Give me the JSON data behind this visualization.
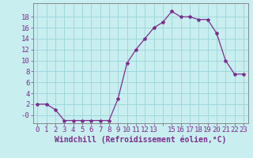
{
  "x": [
    0,
    1,
    2,
    3,
    4,
    5,
    6,
    7,
    8,
    9,
    10,
    11,
    12,
    13,
    14,
    15,
    16,
    17,
    18,
    19,
    20,
    21,
    22,
    23
  ],
  "y": [
    2,
    2,
    1,
    -1,
    -1,
    -1,
    -1,
    -1,
    -1,
    3,
    9.5,
    12,
    14,
    16,
    17,
    19,
    18,
    18,
    17.5,
    17.5,
    15,
    10,
    7.5,
    7.5
  ],
  "line_color": "#7b2d8b",
  "marker": "*",
  "marker_size": 3,
  "bg_color": "#c8eef0",
  "grid_color": "#a0d8dc",
  "xlabel": "Windchill (Refroidissement éolien,°C)",
  "xlabel_fontsize": 7,
  "xtick_labels": [
    "0",
    "1",
    "2",
    "3",
    "4",
    "5",
    "6",
    "7",
    "8",
    "9",
    "10",
    "11",
    "12",
    "13",
    "",
    "15",
    "16",
    "17",
    "18",
    "19",
    "20",
    "21",
    "22",
    "23"
  ],
  "ytick_values": [
    0,
    2,
    4,
    6,
    8,
    10,
    12,
    14,
    16,
    18
  ],
  "ytick_labels": [
    "-0",
    "2",
    "4",
    "6",
    "8",
    "10",
    "12",
    "14",
    "16",
    "18"
  ],
  "ylim": [
    -1.5,
    20.5
  ],
  "xlim": [
    -0.5,
    23.5
  ],
  "tick_fontsize": 6.5,
  "tick_color": "#7b2d8b",
  "spine_color": "#888888"
}
